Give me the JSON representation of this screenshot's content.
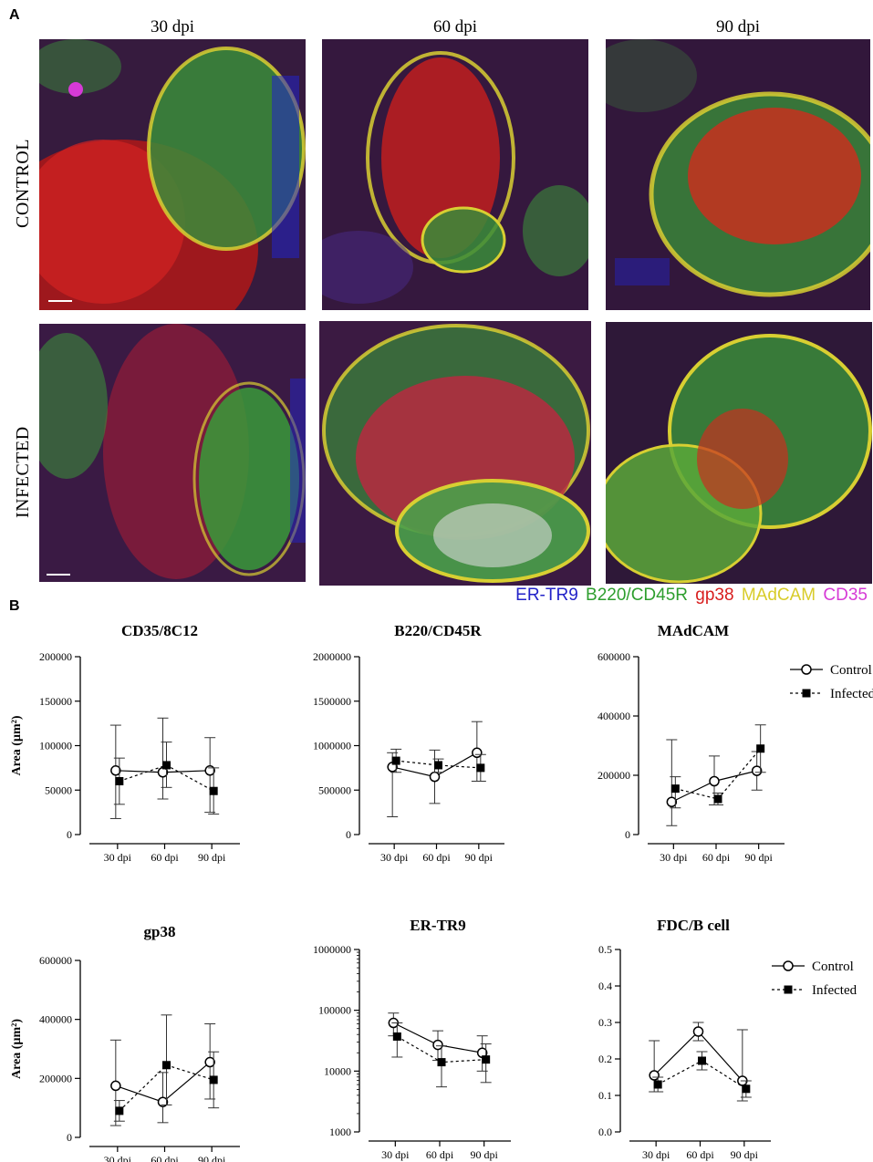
{
  "panel_a": {
    "letter": "A",
    "columns": [
      "30 dpi",
      "60 dpi",
      "90 dpi"
    ],
    "rows": [
      "CONTROL",
      "INFECTED"
    ],
    "stain_legend": [
      {
        "label": "ER-TR9",
        "color": "#2323c8"
      },
      {
        "label": "B220/CD45R",
        "color": "#2e9e2e"
      },
      {
        "label": "gp38",
        "color": "#d81e1e"
      },
      {
        "label": "MAdCAM",
        "color": "#e2d631"
      },
      {
        "label": "CD35",
        "color": "#d63ad6"
      }
    ]
  },
  "panel_b": {
    "letter": "B"
  },
  "chart_data": [
    {
      "type": "line",
      "title": "CD35/8C12",
      "ylabel": "Area (µm²)",
      "categories": [
        "30 dpi",
        "60 dpi",
        "90 dpi"
      ],
      "ylim": [
        0,
        200000
      ],
      "yscale": "linear",
      "yticks": [
        0,
        50000,
        100000,
        150000,
        200000
      ],
      "yticklabels": [
        "0",
        "50000",
        "100000",
        "150000",
        "200000"
      ],
      "legend": false,
      "series": [
        {
          "name": "Control",
          "values": [
            72000,
            70000,
            72000
          ],
          "err_low": [
            18000,
            40000,
            25000
          ],
          "err_high": [
            123000,
            131000,
            109000
          ]
        },
        {
          "name": "Infected",
          "values": [
            60000,
            78000,
            49000
          ],
          "err_low": [
            34000,
            53000,
            23000
          ],
          "err_high": [
            86000,
            104000,
            75000
          ]
        }
      ]
    },
    {
      "type": "line",
      "title": "B220/CD45R",
      "ylabel": "",
      "categories": [
        "30 dpi",
        "60 dpi",
        "90 dpi"
      ],
      "ylim": [
        0,
        2000000
      ],
      "yscale": "linear",
      "yticks": [
        0,
        500000,
        1000000,
        1500000,
        2000000
      ],
      "yticklabels": [
        "0",
        "500000",
        "1000000",
        "1500000",
        "2000000"
      ],
      "legend": false,
      "series": [
        {
          "name": "Control",
          "values": [
            760000,
            650000,
            920000
          ],
          "err_low": [
            200000,
            350000,
            600000
          ],
          "err_high": [
            920000,
            950000,
            1270000
          ]
        },
        {
          "name": "Infected",
          "values": [
            830000,
            780000,
            750000
          ],
          "err_low": [
            700000,
            700000,
            600000
          ],
          "err_high": [
            960000,
            850000,
            900000
          ]
        }
      ]
    },
    {
      "type": "line",
      "title": "MAdCAM",
      "ylabel": "",
      "categories": [
        "30 dpi",
        "60 dpi",
        "90 dpi"
      ],
      "ylim": [
        0,
        600000
      ],
      "yscale": "linear",
      "yticks": [
        0,
        200000,
        400000,
        600000
      ],
      "yticklabels": [
        "0",
        "200000",
        "400000",
        "600000"
      ],
      "legend": true,
      "series": [
        {
          "name": "Control",
          "values": [
            110000,
            180000,
            215000
          ],
          "err_low": [
            30000,
            100000,
            150000
          ],
          "err_high": [
            320000,
            265000,
            280000
          ]
        },
        {
          "name": "Infected",
          "values": [
            155000,
            120000,
            290000
          ],
          "err_low": [
            90000,
            100000,
            210000
          ],
          "err_high": [
            195000,
            140000,
            370000
          ]
        }
      ]
    },
    {
      "type": "line",
      "title": "gp38",
      "ylabel": "Area (µm²)",
      "categories": [
        "30 dpi",
        "60 dpi",
        "90 dpi"
      ],
      "ylim": [
        0,
        600000
      ],
      "yscale": "linear",
      "yticks": [
        0,
        200000,
        400000,
        600000
      ],
      "yticklabels": [
        "0",
        "200000",
        "400000",
        "600000"
      ],
      "legend": false,
      "series": [
        {
          "name": "Control",
          "values": [
            175000,
            120000,
            255000
          ],
          "err_low": [
            40000,
            50000,
            130000
          ],
          "err_high": [
            330000,
            220000,
            385000
          ]
        },
        {
          "name": "Infected",
          "values": [
            90000,
            245000,
            195000
          ],
          "err_low": [
            55000,
            110000,
            100000
          ],
          "err_high": [
            125000,
            415000,
            290000
          ]
        }
      ]
    },
    {
      "type": "line",
      "title": "ER-TR9",
      "ylabel": "",
      "categories": [
        "30 dpi",
        "60 dpi",
        "90 dpi"
      ],
      "ylim": [
        1000,
        1000000
      ],
      "yscale": "log",
      "yticks": [
        1000,
        10000,
        100000,
        1000000
      ],
      "yticklabels": [
        "1000",
        "10000",
        "100000",
        "1000000"
      ],
      "legend": false,
      "series": [
        {
          "name": "Control",
          "values": [
            62000,
            27000,
            20000
          ],
          "err_low": [
            38000,
            15000,
            10000
          ],
          "err_high": [
            90000,
            46000,
            38000
          ]
        },
        {
          "name": "Infected",
          "values": [
            37000,
            14000,
            15500
          ],
          "err_low": [
            17000,
            5500,
            6500
          ],
          "err_high": [
            62000,
            26000,
            28000
          ]
        }
      ]
    },
    {
      "type": "line",
      "title": "FDC/B cell",
      "ylabel": "",
      "categories": [
        "30 dpi",
        "60 dpi",
        "90 dpi"
      ],
      "ylim": [
        0,
        0.5
      ],
      "yscale": "linear",
      "yticks": [
        0,
        0.1,
        0.2,
        0.3,
        0.4,
        0.5
      ],
      "yticklabels": [
        "0.0",
        "0.1",
        "0.2",
        "0.3",
        "0.4",
        "0.5"
      ],
      "legend": true,
      "series": [
        {
          "name": "Control",
          "values": [
            0.155,
            0.275,
            0.14
          ],
          "err_low": [
            0.11,
            0.25,
            0.085
          ],
          "err_high": [
            0.25,
            0.3,
            0.28
          ]
        },
        {
          "name": "Infected",
          "values": [
            0.13,
            0.195,
            0.118
          ],
          "err_low": [
            0.11,
            0.17,
            0.095
          ],
          "err_high": [
            0.15,
            0.22,
            0.14
          ]
        }
      ]
    }
  ]
}
